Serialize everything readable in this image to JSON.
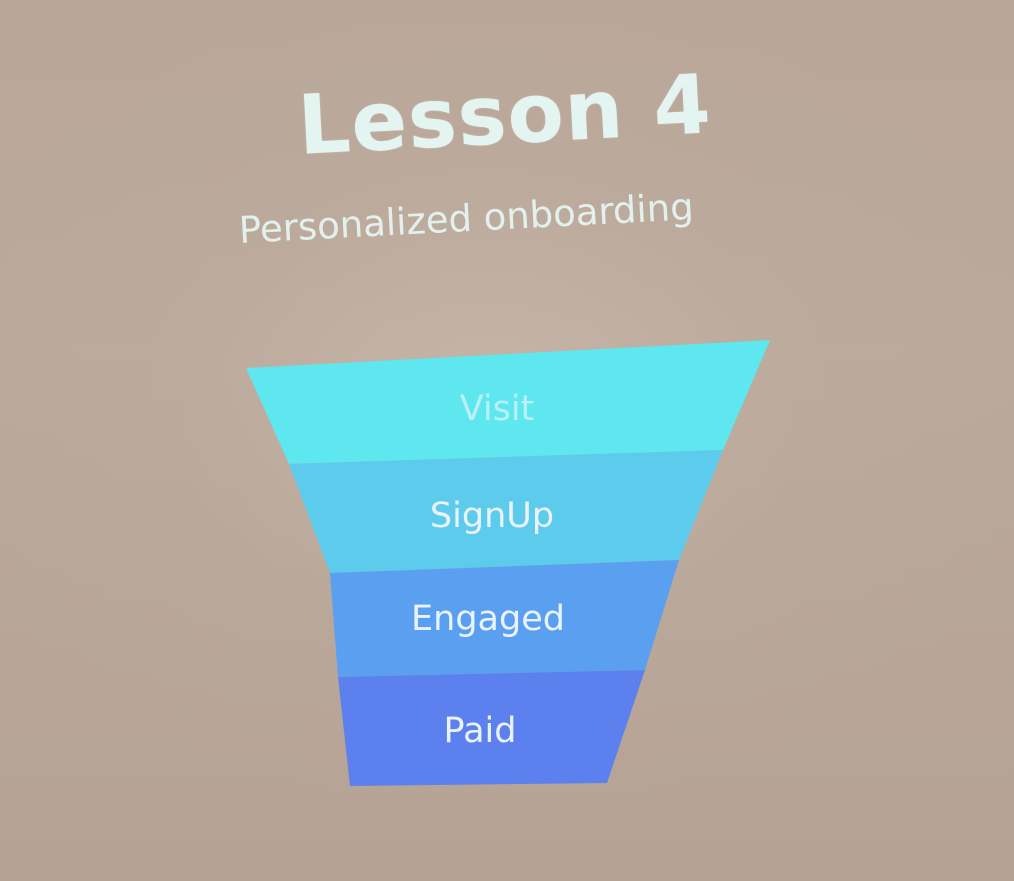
{
  "slide": {
    "title": "Lesson 4",
    "subtitle": "Personalized onboarding"
  },
  "funnel": {
    "stages": [
      {
        "label": "Visit",
        "color": "#5ee7ef"
      },
      {
        "label": "SignUp",
        "color": "#5ccbec"
      },
      {
        "label": "Engaged",
        "color": "#5b9ff0"
      },
      {
        "label": "Paid",
        "color": "#5c80ee"
      }
    ]
  }
}
